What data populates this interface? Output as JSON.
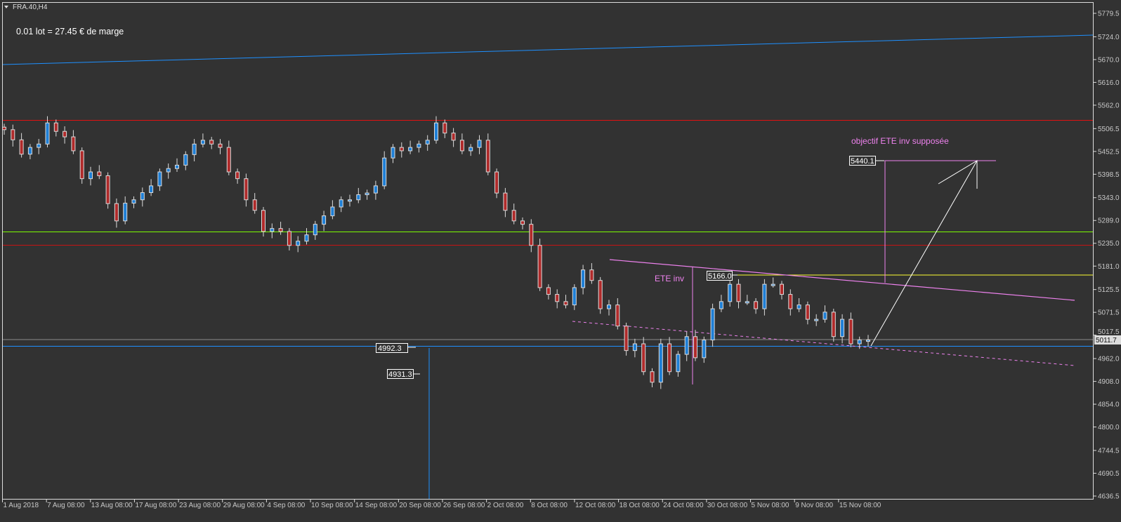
{
  "window": {
    "title": "FRA.40,H4",
    "menu_icon": "triangle-down-icon"
  },
  "info_text": "0.01 lot = 27.45 € de marge",
  "colors": {
    "background": "#323232",
    "bull": "#1e7fd6",
    "bear": "#b02a2a",
    "outline": "#dcdcdc"
  },
  "chart_data": {
    "type": "candlestick",
    "symbol": "FRA.40",
    "timeframe": "H4",
    "ylim": [
      4636.5,
      5779.5
    ],
    "y_ticks": [
      "5779.5",
      "5724.0",
      "5670.0",
      "5616.0",
      "5562.0",
      "5506.5",
      "5452.5",
      "5398.5",
      "5343.0",
      "5289.0",
      "5235.0",
      "5181.0",
      "5125.5",
      "5071.5",
      "5017.5",
      "4962.0",
      "4908.0",
      "4854.0",
      "4800.0",
      "4744.5",
      "4690.5",
      "4636.5"
    ],
    "x_ticks": [
      "1 Aug 2018",
      "7 Aug 08:00",
      "13 Aug 08:00",
      "17 Aug 08:00",
      "23 Aug 08:00",
      "29 Aug 08:00",
      "4 Sep 08:00",
      "10 Sep 08:00",
      "14 Sep 08:00",
      "20 Sep 08:00",
      "26 Sep 08:00",
      "2 Oct 08:00",
      "8 Oct 08:00",
      "12 Oct 08:00",
      "18 Oct 08:00",
      "24 Oct 08:00",
      "30 Oct 08:00",
      "5 Nov 08:00",
      "9 Nov 08:00",
      "15 Nov 08:00"
    ],
    "closes": [
      5504,
      5480,
      5446,
      5462,
      5470,
      5520,
      5500,
      5487,
      5454,
      5388,
      5404,
      5395,
      5329,
      5288,
      5330,
      5338,
      5355,
      5371,
      5404,
      5412,
      5420,
      5445,
      5470,
      5479,
      5470,
      5462,
      5404,
      5388,
      5338,
      5313,
      5263,
      5270,
      5263,
      5230,
      5240,
      5255,
      5280,
      5300,
      5321,
      5338,
      5338,
      5350,
      5354,
      5371,
      5437,
      5462,
      5454,
      5462,
      5470,
      5479,
      5520,
      5496,
      5479,
      5454,
      5462,
      5479,
      5404,
      5354,
      5313,
      5288,
      5280,
      5230,
      5130,
      5114,
      5097,
      5089,
      5130,
      5172,
      5147,
      5080,
      5089,
      5039,
      4981,
      4997,
      4931,
      4906,
      4997,
      4931,
      4972,
      5014,
      4964,
      5006,
      5080,
      5097,
      5138,
      5097,
      5097,
      5080,
      5138,
      5138,
      5114,
      5080,
      5089,
      5055,
      5055,
      5072,
      5014,
      5055,
      4997,
      5006,
      5006
    ],
    "current_price": "5011.7",
    "horizontal_lines": [
      {
        "price": 5527,
        "color": "#e01010"
      },
      {
        "price": 5263,
        "color": "#7cfc00"
      },
      {
        "price": 5231,
        "color": "#c81414"
      },
      {
        "price": 4992.3,
        "color": "#1e90ff"
      }
    ],
    "annotations": {
      "pattern_label": "ETE inv",
      "target_label": "objectif ETE inv supposée",
      "price_labels": [
        "4992.3",
        "4931.3",
        "5166.0",
        "5440.1"
      ],
      "line_color": "#ee82ee"
    }
  }
}
